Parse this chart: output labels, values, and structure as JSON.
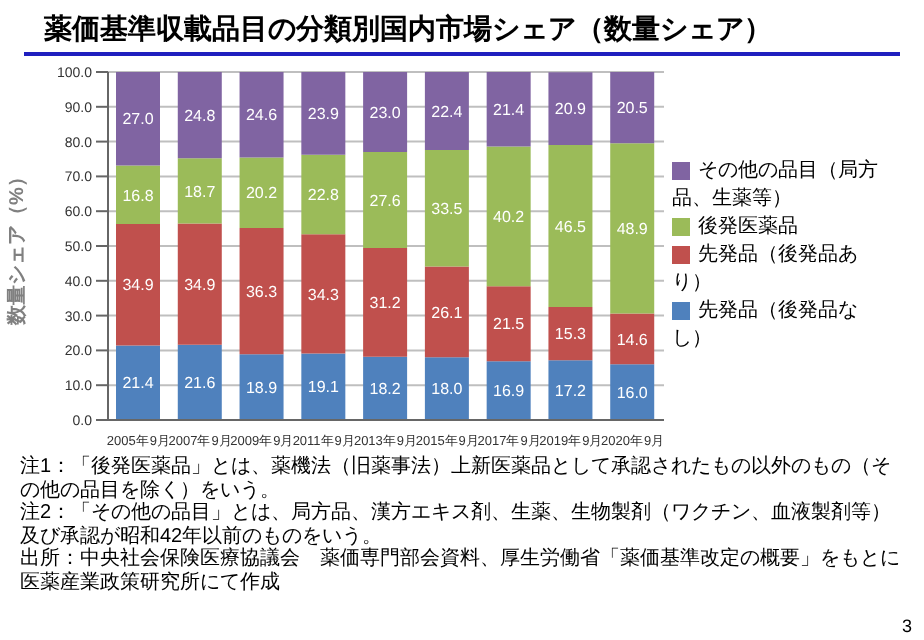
{
  "chart_data": {
    "type": "bar",
    "title": "薬価基準収載品目の分類別国内市場シェア（数量シェア）",
    "ylabel": "数量シェア（%）",
    "categories": [
      "2005年9月",
      "2007年9月",
      "2009年9月",
      "2011年9月",
      "2013年9月",
      "2015年9月",
      "2017年9月",
      "2019年9月",
      "2020年9月"
    ],
    "stacked": true,
    "series": [
      {
        "name": "先発品（後発品なし）",
        "color": "#4f81bd",
        "values": [
          21.4,
          21.6,
          18.9,
          19.1,
          18.2,
          18.0,
          16.9,
          17.2,
          16.0
        ],
        "value_labels": [
          "21.4",
          "21.6",
          "18.9",
          "19.1",
          "18.2",
          "18.0",
          "16.9",
          "17.2",
          "16.0"
        ]
      },
      {
        "name": "先発品（後発品あり）",
        "color": "#c0504d",
        "values": [
          34.9,
          34.9,
          36.3,
          34.3,
          31.2,
          26.1,
          21.5,
          15.3,
          14.6
        ],
        "value_labels": [
          "34.9",
          "34.9",
          "36.3",
          "34.3",
          "31.2",
          "26.1",
          "21.5",
          "15.3",
          "14.6"
        ]
      },
      {
        "name": "後発医薬品",
        "color": "#9bbb59",
        "values": [
          16.8,
          18.7,
          20.2,
          22.8,
          27.6,
          33.5,
          40.2,
          46.5,
          48.9
        ],
        "value_labels": [
          "16.8",
          "18.7",
          "20.2",
          "22.8",
          "27.6",
          "33.5",
          "40.2",
          "46.5",
          "48.9"
        ]
      },
      {
        "name": "その他の品目（局方品、生薬等）",
        "color": "#8064a2",
        "values": [
          27.0,
          24.8,
          24.6,
          23.9,
          23.0,
          22.4,
          21.4,
          20.9,
          20.5
        ],
        "value_labels": [
          "27.0",
          "24.8",
          "24.6",
          "23.9",
          "23.0",
          "22.4",
          "21.4",
          "20.9",
          "20.5"
        ]
      }
    ],
    "ylim": [
      0,
      100
    ],
    "yticks": [
      {
        "value": 0,
        "label": "0.0"
      },
      {
        "value": 10,
        "label": "10.0"
      },
      {
        "value": 20,
        "label": "20.0"
      },
      {
        "value": 30,
        "label": "30.0"
      },
      {
        "value": 40,
        "label": "40.0"
      },
      {
        "value": 50,
        "label": "50.0"
      },
      {
        "value": 60,
        "label": "60.0"
      },
      {
        "value": 70,
        "label": "70.0"
      },
      {
        "value": 80,
        "label": "80.0"
      },
      {
        "value": 90,
        "label": "90.0"
      },
      {
        "value": 100,
        "label": "100.0"
      }
    ],
    "grid": "y",
    "legend": "right",
    "annotations": [
      "注1：「後発医薬品」とは、薬機法（旧薬事法）上新医薬品として承認されたもの以外のもの（その他の品目を除く）をいう。",
      "注2：「その他の品目」とは、局方品、漢方エキス剤、生薬、生物製剤（ワクチン、血液製剤等）及び承認が昭和42年以前のものをいう。",
      "出所：中央社会保険医療協議会　薬価専門部会資料、厚生労働省「薬価基準改定の概要」をもとに医薬産業政策研究所にて作成",
      "3"
    ]
  }
}
